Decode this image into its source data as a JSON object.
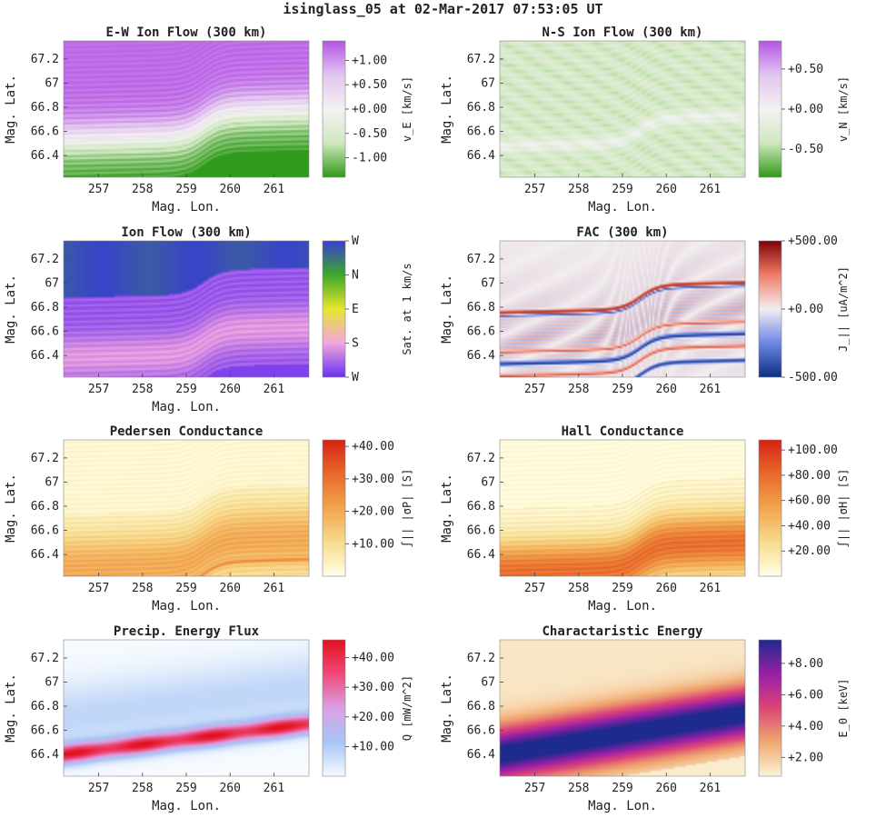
{
  "suptitle": "isinglass_05 at 02-Mar-2017 07:53:05 UT",
  "chart_data": [
    {
      "type": "heatmap",
      "title": "E-W Ion Flow (300 km)",
      "xlabel": "Mag. Lon.",
      "ylabel": "Mag. Lat.",
      "xlim": [
        256.2,
        261.8
      ],
      "ylim": [
        66.22,
        67.35
      ],
      "xticks": [
        "257",
        "258",
        "259",
        "260",
        "261"
      ],
      "yticks": [
        "66.4",
        "66.6",
        "66.8",
        "67",
        "67.2"
      ],
      "colorbar": {
        "label": "v_E [km/s]",
        "range": [
          -1.4,
          1.4
        ],
        "ticks": [
          -1.0,
          -0.5,
          0.0,
          0.5,
          1.0
        ],
        "tick_labels": [
          "-1.00",
          "-0.50",
          "+0.00",
          "+0.50",
          "+1.00"
        ],
        "colormap": [
          "#2f9a1c",
          "#cfe8bf",
          "#f4f2f4",
          "#e3c6ef",
          "#b554e6"
        ]
      },
      "field": "ew_flow"
    },
    {
      "type": "heatmap",
      "title": "N-S Ion Flow (300 km)",
      "xlabel": "Mag. Lon.",
      "ylabel": "Mag. Lat.",
      "xlim": [
        256.2,
        261.8
      ],
      "ylim": [
        66.22,
        67.35
      ],
      "xticks": [
        "257",
        "258",
        "259",
        "260",
        "261"
      ],
      "yticks": [
        "66.4",
        "66.6",
        "66.8",
        "67",
        "67.2"
      ],
      "colorbar": {
        "label": "v_N [km/s]",
        "range": [
          -0.85,
          0.85
        ],
        "ticks": [
          -0.5,
          0.0,
          0.5
        ],
        "tick_labels": [
          "-0.50",
          "+0.00",
          "+0.50"
        ],
        "colormap": [
          "#2f9a1c",
          "#cfe8bf",
          "#f4f2f4",
          "#e3c6ef",
          "#b554e6"
        ]
      },
      "field": "ns_flow"
    },
    {
      "type": "heatmap",
      "title": "Ion Flow (300 km)",
      "xlabel": "Mag. Lon.",
      "ylabel": "Mag. Lat.",
      "xlim": [
        256.2,
        261.8
      ],
      "ylim": [
        66.22,
        67.35
      ],
      "xticks": [
        "257",
        "258",
        "259",
        "260",
        "261"
      ],
      "yticks": [
        "66.4",
        "66.6",
        "66.8",
        "67",
        "67.2"
      ],
      "colorbar": {
        "label": "Sat. at 1 km/s",
        "range": [
          0,
          4
        ],
        "ticks": [
          0,
          1,
          2,
          3,
          4
        ],
        "tick_labels": [
          "W",
          "S",
          "E",
          "N",
          "W"
        ],
        "colormap": [
          "#6a2ff0",
          "#f2a6e0",
          "#e7e62e",
          "#3ca82a",
          "#3a3fd0"
        ]
      },
      "field": "flow_dir"
    },
    {
      "type": "heatmap",
      "title": "FAC (300 km)",
      "xlabel": "",
      "ylabel": "Mag. Lat.",
      "xlim": [
        256.2,
        261.8
      ],
      "ylim": [
        66.22,
        67.35
      ],
      "xticks": [
        "257",
        "258",
        "259",
        "260",
        "261"
      ],
      "yticks": [
        "66.4",
        "66.6",
        "66.8",
        "67",
        "67.2"
      ],
      "colorbar": {
        "label": "J_|| [uA/m^2]",
        "range": [
          -500,
          500
        ],
        "ticks": [
          -500,
          0,
          500
        ],
        "tick_labels": [
          "-500.00",
          "+0.00",
          "+500.00"
        ],
        "colormap": [
          "#0b2f82",
          "#6f86e6",
          "#f3eef0",
          "#ef7d68",
          "#7d0208"
        ]
      },
      "field": "fac"
    },
    {
      "type": "heatmap",
      "title": "Pedersen Conductance",
      "xlabel": "Mag. Lon.",
      "ylabel": "Mag. Lat.",
      "xlim": [
        256.2,
        261.8
      ],
      "ylim": [
        66.22,
        67.35
      ],
      "xticks": [
        "257",
        "258",
        "259",
        "260",
        "261"
      ],
      "yticks": [
        "66.4",
        "66.6",
        "66.8",
        "67",
        "67.2"
      ],
      "colorbar": {
        "label": "∫|| |σP| [S]",
        "range": [
          0,
          42
        ],
        "ticks": [
          10,
          20,
          30,
          40
        ],
        "tick_labels": [
          "+10.00",
          "+20.00",
          "+30.00",
          "+40.00"
        ],
        "colormap": [
          "#ffffe6",
          "#f7dc8c",
          "#f2a54f",
          "#e76a2b",
          "#d92216"
        ]
      },
      "field": "pedersen"
    },
    {
      "type": "heatmap",
      "title": "Hall Conductance",
      "xlabel": "Mag. Lon.",
      "ylabel": "Mag. Lat.",
      "xlim": [
        256.2,
        261.8
      ],
      "ylim": [
        66.22,
        67.35
      ],
      "xticks": [
        "257",
        "258",
        "259",
        "260",
        "261"
      ],
      "yticks": [
        "66.4",
        "66.6",
        "66.8",
        "67",
        "67.2"
      ],
      "colorbar": {
        "label": "∫|| |σH| [S]",
        "range": [
          0,
          108
        ],
        "ticks": [
          20,
          40,
          60,
          80,
          100
        ],
        "tick_labels": [
          "+20.00",
          "+40.00",
          "+60.00",
          "+80.00",
          "+100.00"
        ],
        "colormap": [
          "#ffffe6",
          "#f7dc8c",
          "#f2a54f",
          "#e76a2b",
          "#d92216"
        ]
      },
      "field": "hall"
    },
    {
      "type": "heatmap",
      "title": "Precip. Energy Flux",
      "xlabel": "Mag. Lon.",
      "ylabel": "Mag. Lat.",
      "xlim": [
        256.2,
        261.8
      ],
      "ylim": [
        66.22,
        67.35
      ],
      "xticks": [
        "257",
        "258",
        "259",
        "260",
        "261"
      ],
      "yticks": [
        "66.4",
        "66.6",
        "66.8",
        "67",
        "67.2"
      ],
      "colorbar": {
        "label": "Q [mW/m^2]",
        "range": [
          0,
          46
        ],
        "ticks": [
          10,
          20,
          30,
          40
        ],
        "tick_labels": [
          "+10.00",
          "+20.00",
          "+30.00",
          "+40.00"
        ],
        "colormap": [
          "#f7fbff",
          "#a8c6f5",
          "#d9a2e6",
          "#ef4a7a",
          "#e0121f"
        ]
      },
      "field": "eflux"
    },
    {
      "type": "heatmap",
      "title": "Charactaristic Energy",
      "xlabel": "Mag. Lon.",
      "ylabel": "Mag. Lat.",
      "xlim": [
        256.2,
        261.8
      ],
      "ylim": [
        66.22,
        67.35
      ],
      "xticks": [
        "257",
        "258",
        "259",
        "260",
        "261"
      ],
      "yticks": [
        "66.4",
        "66.6",
        "66.8",
        "67",
        "67.2"
      ],
      "colorbar": {
        "label": "E_0 [keV]",
        "range": [
          0.8,
          9.5
        ],
        "ticks": [
          2,
          4,
          6,
          8
        ],
        "tick_labels": [
          "+2.00",
          "+4.00",
          "+6.00",
          "+8.00"
        ],
        "colormap": [
          "#fbf4d8",
          "#f1a86f",
          "#dd4677",
          "#9a1fa6",
          "#1d2a8e"
        ]
      },
      "field": "char_energy"
    }
  ]
}
